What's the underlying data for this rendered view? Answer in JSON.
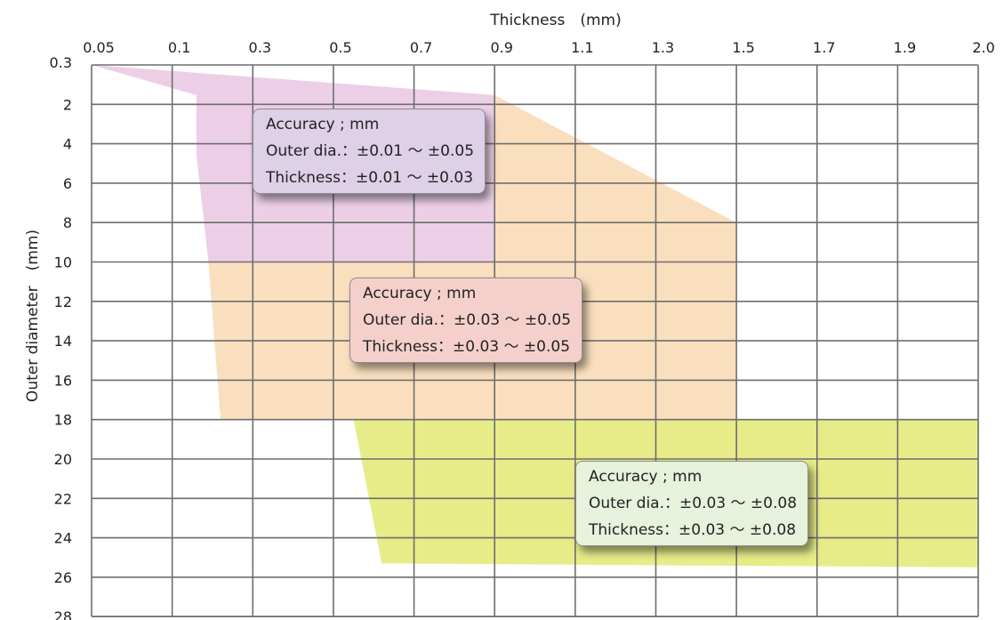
{
  "chart_data": {
    "type": "area",
    "xlabel": "Thickness　(mm)",
    "ylabel": "Outer diameter　(mm)",
    "x_ticks": [
      "0.05",
      "0.1",
      "0.3",
      "0.5",
      "0.7",
      "0.9",
      "1.1",
      "1.3",
      "1.5",
      "1.7",
      "1.9",
      "2.0"
    ],
    "y_ticks": [
      "0.3",
      "2",
      "4",
      "6",
      "8",
      "10",
      "12",
      "14",
      "16",
      "18",
      "20",
      "22",
      "24",
      "26",
      "28"
    ],
    "axis_position": {
      "x": "top",
      "y": "left",
      "y_direction": "downward"
    },
    "grid": true,
    "regions": [
      {
        "color": "#eccfe6",
        "polygon": [
          [
            0.05,
            0.3
          ],
          [
            0.9,
            1.6
          ],
          [
            0.9,
            10
          ],
          [
            0.19,
            10
          ],
          [
            0.16,
            4.5
          ],
          [
            0.16,
            1.6
          ]
        ],
        "callout": {
          "lines": [
            "Accuracy ; mm",
            "Outer dia.：±0.01 ～ ±0.05",
            "Thickness：±0.01 ～ ±0.03"
          ],
          "bg": "#ddd0e7",
          "anchor": [
            0.3,
            2.2
          ]
        }
      },
      {
        "color": "#f9dfbe",
        "polygon": [
          [
            0.9,
            1.6
          ],
          [
            1.5,
            8
          ],
          [
            1.5,
            18
          ],
          [
            0.22,
            18
          ],
          [
            0.19,
            10
          ],
          [
            0.9,
            10
          ]
        ],
        "callout": {
          "lines": [
            "Accuracy ; mm",
            "Outer dia.：±0.03 ～ ±0.05",
            "Thickness：±0.03 ～ ±0.05"
          ],
          "bg": "#f5d0cb",
          "anchor": [
            0.54,
            10.8
          ]
        }
      },
      {
        "color": "#e7ec88",
        "polygon": [
          [
            0.85,
            18
          ],
          [
            2.0,
            18
          ],
          [
            2.0,
            25.5
          ],
          [
            0.62,
            25.3
          ],
          [
            0.55,
            18
          ]
        ],
        "callout": {
          "lines": [
            "Accuracy ; mm",
            "Outer dia.：±0.03 ～ ±0.08",
            "Thickness：±0.03 ～ ±0.08"
          ],
          "bg": "#e6f2dc",
          "anchor": [
            1.1,
            20.1
          ]
        }
      }
    ]
  }
}
